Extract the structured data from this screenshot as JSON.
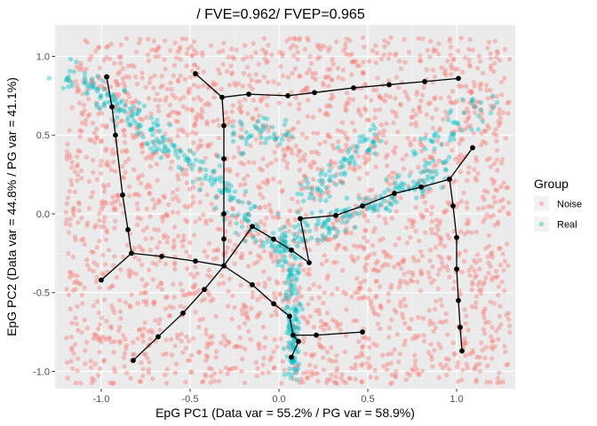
{
  "chart_data": {
    "type": "scatter",
    "title": "/ FVE=0.962/ FVEP=0.965",
    "xlabel": "EpG PC1 (Data var = 55.2% / PG var = 58.9%)",
    "ylabel": "EpG PC2 (Data var = 44.8% / PG var = 41.1%)",
    "xlim": [
      -1.26,
      1.33
    ],
    "ylim": [
      -1.11,
      1.2
    ],
    "xticks": [
      -1.0,
      -0.5,
      0.0,
      0.5,
      1.0
    ],
    "xtick_labels": [
      "-1.0",
      "-0.5",
      "0.0",
      "0.5",
      "1.0"
    ],
    "yticks": [
      -1.0,
      -0.5,
      0.0,
      0.5,
      1.0
    ],
    "ytick_labels": [
      "-1.0",
      "-0.5",
      "0.0",
      "0.5",
      "1.0"
    ],
    "grid": true,
    "legend": {
      "title": "Group",
      "position": "right",
      "entries": [
        {
          "label": "Noise",
          "color": "#F8766D"
        },
        {
          "label": "Real",
          "color": "#00BFC4"
        }
      ]
    },
    "series": [
      {
        "name": "Noise",
        "color": "#F8766D",
        "distribution": "uniform",
        "count": 2400,
        "x_range": [
          -1.2,
          1.3
        ],
        "y_range": [
          -1.08,
          1.12
        ]
      },
      {
        "name": "Real",
        "color": "#00BFC4",
        "distribution": "along curve",
        "count": 700,
        "curve": [
          [
            [
              0.08,
              -1.06
            ],
            [
              0.08,
              -0.75
            ],
            [
              0.07,
              -0.45
            ],
            [
              0.06,
              -0.28
            ],
            [
              0.0,
              -0.2
            ]
          ],
          [
            [
              0.0,
              -0.2
            ],
            [
              0.2,
              -0.1
            ],
            [
              0.4,
              0.0
            ],
            [
              0.6,
              0.1
            ],
            [
              0.8,
              0.2
            ],
            [
              0.95,
              0.3
            ]
          ],
          [
            [
              0.0,
              -0.2
            ],
            [
              -0.15,
              -0.05
            ],
            [
              -0.28,
              0.1
            ],
            [
              -0.4,
              0.25
            ],
            [
              -0.6,
              0.4
            ]
          ],
          [
            [
              -0.6,
              0.4
            ],
            [
              -0.8,
              0.6
            ],
            [
              -1.0,
              0.75
            ],
            [
              -1.2,
              0.9
            ]
          ],
          [
            [
              0.15,
              0.1
            ],
            [
              0.3,
              0.25
            ],
            [
              0.45,
              0.4
            ],
            [
              0.55,
              0.5
            ]
          ],
          [
            [
              0.8,
              0.35
            ],
            [
              1.0,
              0.55
            ],
            [
              1.15,
              0.72
            ]
          ],
          [
            [
              -0.25,
              0.45
            ],
            [
              -0.1,
              0.55
            ],
            [
              0.05,
              0.5
            ]
          ]
        ]
      }
    ],
    "graph": {
      "color": "#000000",
      "nodes": [
        [
          -0.97,
          0.87
        ],
        [
          -0.94,
          0.68
        ],
        [
          -0.92,
          0.5
        ],
        [
          -0.88,
          0.12
        ],
        [
          -0.85,
          -0.1
        ],
        [
          -0.83,
          -0.25
        ],
        [
          -1.0,
          -0.42
        ],
        [
          -0.66,
          -0.27
        ],
        [
          -0.47,
          -0.3
        ],
        [
          -0.31,
          -0.33
        ],
        [
          -0.47,
          0.89
        ],
        [
          -0.32,
          0.74
        ],
        [
          -0.31,
          0.56
        ],
        [
          -0.31,
          0.35
        ],
        [
          -0.31,
          0.0
        ],
        [
          -0.31,
          -0.16
        ],
        [
          -0.42,
          -0.48
        ],
        [
          -0.54,
          -0.63
        ],
        [
          -0.68,
          -0.78
        ],
        [
          -0.82,
          -0.93
        ],
        [
          -0.17,
          0.76
        ],
        [
          0.05,
          0.75
        ],
        [
          0.2,
          0.77
        ],
        [
          0.42,
          0.8
        ],
        [
          0.62,
          0.82
        ],
        [
          0.82,
          0.84
        ],
        [
          1.01,
          0.86
        ],
        [
          -0.15,
          -0.08
        ],
        [
          -0.03,
          -0.16
        ],
        [
          0.07,
          -0.23
        ],
        [
          0.17,
          -0.31
        ],
        [
          -0.15,
          -0.45
        ],
        [
          -0.03,
          -0.57
        ],
        [
          0.06,
          -0.65
        ],
        [
          0.08,
          -0.77
        ],
        [
          0.07,
          -0.91
        ],
        [
          0.11,
          -0.81
        ],
        [
          0.21,
          -0.77
        ],
        [
          0.47,
          -0.75
        ],
        [
          0.12,
          -0.03
        ],
        [
          0.32,
          -0.01
        ],
        [
          0.47,
          0.05
        ],
        [
          0.65,
          0.13
        ],
        [
          0.8,
          0.17
        ],
        [
          0.96,
          0.22
        ],
        [
          1.09,
          0.42
        ],
        [
          0.98,
          0.05
        ],
        [
          1.0,
          -0.15
        ],
        [
          1.0,
          -0.35
        ],
        [
          1.01,
          -0.55
        ],
        [
          1.02,
          -0.72
        ],
        [
          1.03,
          -0.87
        ]
      ],
      "edges": [
        [
          0,
          1
        ],
        [
          1,
          2
        ],
        [
          2,
          3
        ],
        [
          3,
          4
        ],
        [
          4,
          5
        ],
        [
          5,
          6
        ],
        [
          5,
          7
        ],
        [
          7,
          8
        ],
        [
          8,
          9
        ],
        [
          10,
          11
        ],
        [
          11,
          12
        ],
        [
          12,
          13
        ],
        [
          13,
          14
        ],
        [
          14,
          15
        ],
        [
          15,
          9
        ],
        [
          11,
          20
        ],
        [
          20,
          21
        ],
        [
          21,
          22
        ],
        [
          22,
          23
        ],
        [
          23,
          24
        ],
        [
          24,
          25
        ],
        [
          25,
          26
        ],
        [
          9,
          27
        ],
        [
          27,
          28
        ],
        [
          28,
          29
        ],
        [
          29,
          30
        ],
        [
          30,
          39
        ],
        [
          39,
          40
        ],
        [
          40,
          41
        ],
        [
          41,
          42
        ],
        [
          42,
          43
        ],
        [
          43,
          44
        ],
        [
          44,
          45
        ],
        [
          44,
          46
        ],
        [
          46,
          47
        ],
        [
          47,
          48
        ],
        [
          48,
          49
        ],
        [
          49,
          50
        ],
        [
          50,
          51
        ],
        [
          9,
          16
        ],
        [
          16,
          17
        ],
        [
          17,
          18
        ],
        [
          18,
          19
        ],
        [
          9,
          31
        ],
        [
          31,
          32
        ],
        [
          32,
          33
        ],
        [
          33,
          34
        ],
        [
          34,
          36
        ],
        [
          36,
          35
        ],
        [
          34,
          37
        ],
        [
          37,
          38
        ]
      ]
    }
  }
}
